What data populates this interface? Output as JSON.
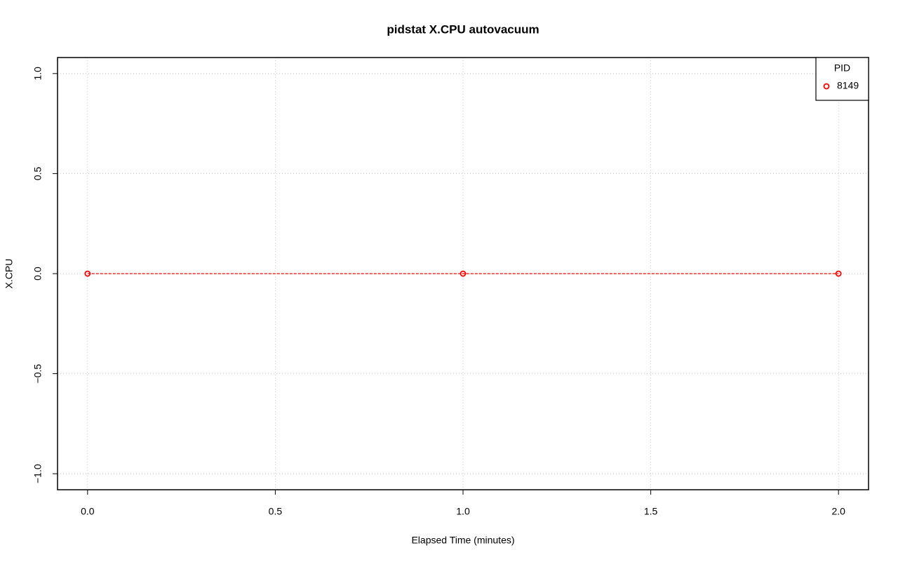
{
  "chart_data": {
    "type": "line",
    "title": "pidstat X.CPU autovacuum",
    "xlabel": "Elapsed Time (minutes)",
    "ylabel": "X.CPU",
    "x": [
      0,
      1,
      2
    ],
    "series": [
      {
        "name": "8149",
        "color": "#ff0000",
        "values": [
          0,
          0,
          0
        ]
      }
    ],
    "xlim": [
      -0.08,
      2.08
    ],
    "ylim": [
      -1.08,
      1.08
    ],
    "xticks": [
      {
        "value": 0,
        "label": "0.0"
      },
      {
        "value": 0.5,
        "label": "0.5"
      },
      {
        "value": 1,
        "label": "1.0"
      },
      {
        "value": 1.5,
        "label": "1.5"
      },
      {
        "value": 2,
        "label": "2.0"
      }
    ],
    "yticks": [
      {
        "value": -1,
        "label": "−1.0"
      },
      {
        "value": -0.5,
        "label": "−0.5"
      },
      {
        "value": 0,
        "label": "0.0"
      },
      {
        "value": 0.5,
        "label": "0.5"
      },
      {
        "value": 1,
        "label": "1.0"
      }
    ],
    "grid": true,
    "line_style": "dashed",
    "legend_title": "PID",
    "legend_position": "topright"
  }
}
